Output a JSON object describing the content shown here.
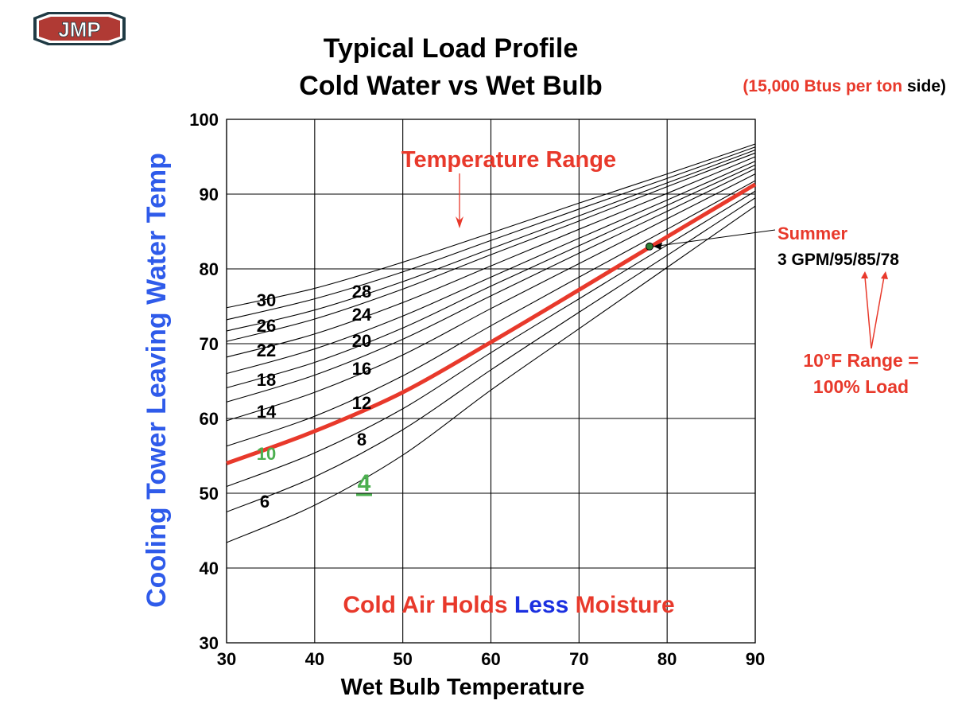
{
  "logo": {
    "text": "JMP",
    "colors": {
      "fill": "#b03a34",
      "border": "#1f3a44"
    }
  },
  "chart_data": {
    "type": "line",
    "title": [
      "Typical Load Profile",
      "Cold Water vs Wet Bulb"
    ],
    "subtitle": {
      "red_part": "(15,000 Btus per ton",
      "black_part": " side)"
    },
    "xlabel": "Wet Bulb Temperature",
    "ylabel": "Cooling Tower Leaving Water Temp",
    "xlim": [
      30,
      90
    ],
    "ylim": [
      30,
      100
    ],
    "xticks": [
      "30",
      "40",
      "50",
      "60",
      "70",
      "80",
      "90"
    ],
    "yticks": [
      "30",
      "40",
      "50",
      "60",
      "70",
      "80",
      "90",
      "100"
    ],
    "grid": true,
    "x": [
      30,
      40,
      50,
      60,
      70,
      80,
      90
    ],
    "series": [
      {
        "name": "30",
        "values": [
          74.8,
          77.4,
          80.9,
          84.8,
          88.8,
          92.7,
          96.7
        ]
      },
      {
        "name": "28",
        "values": [
          73.2,
          76.0,
          79.6,
          83.8,
          88.0,
          92.1,
          96.3
        ]
      },
      {
        "name": "26",
        "values": [
          71.7,
          74.5,
          78.3,
          82.7,
          87.1,
          91.5,
          95.9
        ]
      },
      {
        "name": "24",
        "values": [
          70.3,
          73.3,
          77.3,
          81.9,
          86.4,
          91.0,
          95.5
        ]
      },
      {
        "name": "22",
        "values": [
          68.2,
          71.3,
          75.5,
          80.4,
          85.3,
          90.1,
          95.0
        ]
      },
      {
        "name": "20",
        "values": [
          66.0,
          69.3,
          73.7,
          78.9,
          84.1,
          89.2,
          94.4
        ]
      },
      {
        "name": "18",
        "values": [
          64.1,
          67.5,
          72.1,
          77.7,
          83.1,
          88.5,
          93.9
        ]
      },
      {
        "name": "16",
        "values": [
          62.2,
          65.8,
          70.6,
          76.4,
          82.1,
          87.7,
          93.4
        ]
      },
      {
        "name": "14",
        "values": [
          59.7,
          63.5,
          68.5,
          74.7,
          80.7,
          86.7,
          92.7
        ]
      },
      {
        "name": "12",
        "values": [
          56.3,
          60.3,
          65.7,
          72.4,
          78.9,
          85.3,
          91.8
        ]
      },
      {
        "name": "10",
        "values": [
          54.0,
          58.3,
          63.5,
          70.2,
          77.2,
          84.3,
          91.3
        ],
        "highlight": true
      },
      {
        "name": "8",
        "values": [
          50.9,
          55.4,
          61.3,
          68.8,
          76.0,
          83.2,
          90.4
        ]
      },
      {
        "name": "6",
        "values": [
          47.5,
          52.2,
          58.5,
          66.5,
          74.2,
          81.8,
          89.5
        ]
      },
      {
        "name": "4",
        "values": [
          43.4,
          48.4,
          55.1,
          63.8,
          72.0,
          80.2,
          88.4
        ]
      }
    ],
    "curve_labels": [
      {
        "text": "30",
        "color": "#000000"
      },
      {
        "text": "28",
        "color": "#000000"
      },
      {
        "text": "26",
        "color": "#000000"
      },
      {
        "text": "24",
        "color": "#000000"
      },
      {
        "text": "22",
        "color": "#000000"
      },
      {
        "text": "20",
        "color": "#000000"
      },
      {
        "text": "18",
        "color": "#000000"
      },
      {
        "text": "16",
        "color": "#000000"
      },
      {
        "text": "14",
        "color": "#000000"
      },
      {
        "text": "12",
        "color": "#000000"
      },
      {
        "text": "10",
        "color": "#4caf50"
      },
      {
        "text": "8",
        "color": "#000000"
      },
      {
        "text": "6",
        "color": "#000000"
      },
      {
        "text": "4",
        "color": "#4caf50"
      }
    ],
    "summer_point": {
      "x": 78,
      "y": 83
    },
    "annotations": {
      "temperature_range": "Temperature Range",
      "summer": "Summer",
      "summer_condition": "3 GPM/95/85/78",
      "range_note_1": "10°F Range =",
      "range_note_2": "100% Load",
      "moisture": {
        "part1": "Cold Air Holds ",
        "part2": "Less",
        "part3": " Moisture"
      }
    },
    "colors": {
      "highlight": "#e8392b",
      "curves": "#000000",
      "ylabel": "#2f5bea",
      "less": "#1a2fe0",
      "green": "#4caf50",
      "marker": "#2e7d32"
    }
  }
}
